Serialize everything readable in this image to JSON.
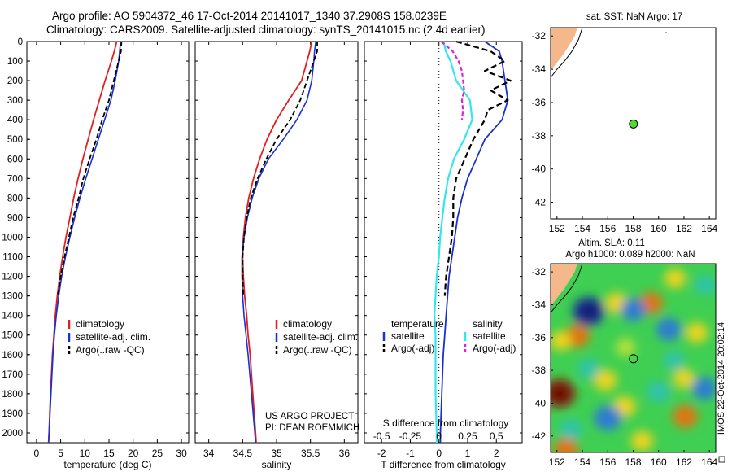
{
  "header": {
    "line1": "Argo profile: AO 5904372_46 17-Oct-2014 20141017_1340 37.2908S 158.0239E",
    "line2": "Climatology: CARS2009. Satellite-adjusted climatology: synTS_20141015.nc (2.4d earlier)"
  },
  "colors": {
    "climatology": "#e02020",
    "satellite": "#1a2fd6",
    "argo": "#000000",
    "salinity_satellite": "#33e6f0",
    "salinity_argo": "#e020e0",
    "land": "#f4b88a",
    "float_marker": "#4cdb2e"
  },
  "legend_profiles": [
    "climatology",
    "satellite-adj. clim.",
    "Argo(..raw -QC)"
  ],
  "legend_diff": {
    "temperature_title": "temperature",
    "salinity_title": "salinity",
    "satellite": "satellite",
    "argo": "Argo(-adj)"
  },
  "credit": [
    "US ARGO PROJECT",
    "PI: DEAN ROEMMICH"
  ],
  "watermark": "IMOS 22-Oct-2014 20:02:14",
  "map_top": {
    "title": "sat. SST: NaN Argo: 17"
  },
  "map_bottom": {
    "title_line1": "Altim. SLA: 0.11",
    "title_line2": "Argo h1000: 0.089 h2000: NaN"
  },
  "chart_data": [
    {
      "type": "line",
      "panel": "temperature",
      "xlabel": "temperature (deg C)",
      "xlim": [
        -2,
        31.5
      ],
      "ylim": [
        2050,
        0
      ],
      "xticks": [
        0,
        5,
        10,
        15,
        20,
        25,
        30
      ],
      "yticks": [
        0,
        100,
        200,
        300,
        400,
        500,
        600,
        700,
        800,
        900,
        1000,
        1100,
        1200,
        1300,
        1400,
        1500,
        1600,
        1700,
        1800,
        1900,
        2000
      ],
      "series": [
        {
          "name": "climatology",
          "depth": [
            0,
            50,
            100,
            200,
            300,
            400,
            500,
            600,
            700,
            800,
            900,
            1000,
            1100,
            1200,
            1300,
            1400,
            1500,
            1600,
            1800,
            2000,
            2050
          ],
          "values": [
            16.6,
            16.1,
            15.5,
            14.2,
            13.0,
            11.8,
            10.7,
            9.6,
            8.6,
            7.7,
            6.9,
            6.1,
            5.4,
            4.8,
            4.3,
            3.9,
            3.6,
            3.3,
            2.9,
            2.6,
            2.5
          ]
        },
        {
          "name": "satellite-adj. clim.",
          "depth": [
            0,
            50,
            100,
            200,
            300,
            400,
            500,
            600,
            700,
            800,
            900,
            1000,
            1100,
            1200,
            1300,
            1400,
            1500,
            1600,
            1800,
            2000,
            2050
          ],
          "values": [
            17.4,
            17.2,
            17.0,
            16.3,
            15.4,
            14.1,
            12.8,
            11.5,
            10.2,
            9.0,
            7.9,
            6.9,
            6.0,
            5.2,
            4.6,
            4.1,
            3.7,
            3.4,
            3.0,
            2.6,
            2.5
          ]
        },
        {
          "name": "Argo(..raw -QC)",
          "depth": [
            0,
            50,
            100,
            200,
            300,
            400,
            500,
            600,
            700,
            800,
            900,
            1000,
            1100,
            1200,
            1300
          ],
          "values": [
            17.6,
            17.5,
            17.0,
            16.0,
            15.0,
            13.6,
            12.4,
            11.0,
            9.7,
            8.7,
            7.6,
            6.7,
            5.8,
            5.0,
            4.4
          ]
        }
      ]
    },
    {
      "type": "line",
      "panel": "salinity",
      "xlabel": "salinity",
      "xlim": [
        33.8,
        36.2
      ],
      "ylim": [
        2050,
        0
      ],
      "xticks": [
        34,
        34.5,
        35,
        35.5,
        36
      ],
      "series": [
        {
          "name": "climatology",
          "depth": [
            0,
            50,
            100,
            200,
            300,
            400,
            500,
            600,
            700,
            800,
            900,
            1000,
            1100,
            1200,
            1300,
            1400,
            1500,
            1600,
            1800,
            2000,
            2050
          ],
          "values": [
            35.52,
            35.49,
            35.45,
            35.37,
            35.18,
            35.0,
            34.86,
            34.75,
            34.66,
            34.59,
            34.54,
            34.51,
            34.5,
            34.51,
            34.53,
            34.56,
            34.58,
            34.61,
            34.65,
            34.69,
            34.7
          ]
        },
        {
          "name": "satellite-adj. clim.",
          "depth": [
            0,
            50,
            100,
            200,
            300,
            400,
            500,
            600,
            700,
            800,
            900,
            1000,
            1100,
            1200,
            1300,
            1400,
            1500,
            1600,
            1800,
            2000,
            2050
          ],
          "values": [
            35.58,
            35.56,
            35.55,
            35.52,
            35.45,
            35.3,
            35.1,
            34.88,
            34.74,
            34.64,
            34.57,
            34.52,
            34.49,
            34.49,
            34.5,
            34.52,
            34.55,
            34.58,
            34.63,
            34.68,
            34.69
          ]
        },
        {
          "name": "Argo(..raw -QC)",
          "depth": [
            0,
            50,
            100,
            200,
            300,
            400,
            500,
            600,
            700,
            800,
            900,
            1000,
            1100,
            1200,
            1300
          ],
          "values": [
            35.6,
            35.6,
            35.55,
            35.45,
            35.35,
            35.2,
            35.0,
            34.85,
            34.72,
            34.62,
            34.56,
            34.52,
            34.5,
            34.5,
            34.51
          ]
        }
      ]
    },
    {
      "type": "line",
      "panel": "difference",
      "xlabel": "T difference from climatology",
      "xlabel_top": "S difference from climatology",
      "xlim": [
        -2.6,
        2.9
      ],
      "ylim": [
        2050,
        0
      ],
      "xticks": [
        -2,
        -1,
        0,
        1,
        2
      ],
      "xticks_salinity": [
        "-0.5",
        "-0.25",
        "0",
        "0.25",
        "0.5"
      ],
      "series": [
        {
          "name": "temperature satellite",
          "depth": [
            0,
            50,
            100,
            200,
            300,
            400,
            500,
            600,
            700,
            800,
            900,
            1000,
            1100,
            1200,
            1300,
            1400,
            1500,
            1600,
            1800,
            2000,
            2050
          ],
          "values": [
            1.6,
            2.1,
            2.2,
            2.3,
            2.4,
            2.2,
            1.6,
            1.3,
            1.0,
            0.8,
            0.65,
            0.55,
            0.45,
            0.35,
            0.3,
            0.25,
            0.2,
            0.15,
            0.1,
            0.05,
            0.05
          ]
        },
        {
          "name": "temperature Argo(-adj)",
          "depth": [
            0,
            50,
            100,
            150,
            200,
            250,
            300,
            350,
            400,
            500,
            600,
            700,
            800,
            900,
            1000,
            1100,
            1200,
            1300
          ],
          "values": [
            0.6,
            1.8,
            2.3,
            1.6,
            2.5,
            1.8,
            2.4,
            1.7,
            1.6,
            1.2,
            0.9,
            0.6,
            0.5,
            0.5,
            0.45,
            0.35,
            0.25,
            0.2
          ]
        },
        {
          "name": "salinity satellite",
          "depth": [
            0,
            50,
            100,
            200,
            300,
            400,
            500,
            600,
            700,
            800,
            900,
            1000,
            1100,
            1200,
            1300,
            1400,
            1500,
            1600,
            1800,
            2000,
            2050
          ],
          "values": [
            0.04,
            0.06,
            0.1,
            0.15,
            0.27,
            0.29,
            0.22,
            0.13,
            0.08,
            0.05,
            0.03,
            0.01,
            0.0,
            -0.02,
            -0.03,
            -0.04,
            -0.03,
            -0.03,
            -0.03,
            -0.02,
            -0.02
          ]
        },
        {
          "name": "salinity Argo(-adj)",
          "depth": [
            0,
            50,
            100,
            150,
            200,
            250,
            300,
            350,
            400
          ],
          "values": [
            0.02,
            0.12,
            0.17,
            0.2,
            0.21,
            0.22,
            0.2,
            0.21,
            0.2
          ]
        }
      ]
    },
    {
      "type": "scatter",
      "panel": "map-sst",
      "xlim": [
        151.5,
        164.5
      ],
      "ylim": [
        -43,
        -31.5
      ],
      "xticks": [
        152,
        154,
        156,
        158,
        160,
        162,
        164
      ],
      "yticks": [
        -32,
        -34,
        -36,
        -38,
        -40,
        -42
      ],
      "points": [
        {
          "lon": 158.02,
          "lat": -37.29
        }
      ]
    },
    {
      "type": "heatmap",
      "panel": "map-sla",
      "xlim": [
        151.5,
        164.5
      ],
      "ylim": [
        -43,
        -31.5
      ],
      "xticks": [
        152,
        154,
        156,
        158,
        160,
        162,
        164
      ],
      "yticks": [
        -32,
        -34,
        -36,
        -38,
        -40,
        -42
      ],
      "points": [
        {
          "lon": 158.02,
          "lat": -37.29
        }
      ],
      "blobs": [
        {
          "lon": 154.5,
          "lat": -34.4,
          "v": -1.0
        },
        {
          "lon": 153.6,
          "lat": -35.9,
          "v": 0.55
        },
        {
          "lon": 152.2,
          "lat": -39.4,
          "v": 1.0
        },
        {
          "lon": 152.3,
          "lat": -36.2,
          "v": 0.35
        },
        {
          "lon": 156.7,
          "lat": -33.9,
          "v": 0.45
        },
        {
          "lon": 159.4,
          "lat": -33.9,
          "v": 0.5
        },
        {
          "lon": 161.3,
          "lat": -32.4,
          "v": 0.35
        },
        {
          "lon": 158.0,
          "lat": -34.3,
          "v": -0.55
        },
        {
          "lon": 160.8,
          "lat": -35.5,
          "v": -0.55
        },
        {
          "lon": 163.0,
          "lat": -35.7,
          "v": 0.4
        },
        {
          "lon": 155.8,
          "lat": -38.6,
          "v": 0.45
        },
        {
          "lon": 157.3,
          "lat": -40.2,
          "v": 0.45
        },
        {
          "lon": 156.0,
          "lat": -40.9,
          "v": -0.7
        },
        {
          "lon": 160.0,
          "lat": -39.3,
          "v": -0.45
        },
        {
          "lon": 162.0,
          "lat": -38.5,
          "v": 0.35
        },
        {
          "lon": 162.1,
          "lat": -40.8,
          "v": 0.55
        },
        {
          "lon": 163.6,
          "lat": -39.1,
          "v": -0.55
        },
        {
          "lon": 153.1,
          "lat": -41.6,
          "v": -0.45
        },
        {
          "lon": 154.5,
          "lat": -37.9,
          "v": -0.35
        },
        {
          "lon": 158.7,
          "lat": -42.3,
          "v": 0.4
        },
        {
          "lon": 152.7,
          "lat": -42.8,
          "v": 0.5
        },
        {
          "lon": 163.7,
          "lat": -32.8,
          "v": -0.35
        },
        {
          "lon": 157.4,
          "lat": -36.6,
          "v": 0.25
        },
        {
          "lon": 161.2,
          "lat": -37.4,
          "v": -0.3
        }
      ]
    }
  ]
}
